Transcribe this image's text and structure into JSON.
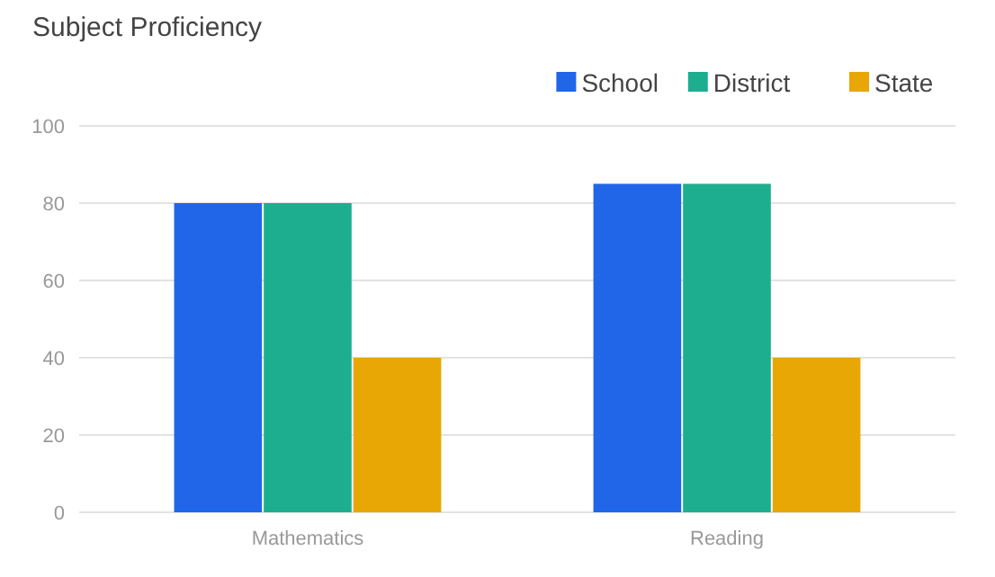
{
  "chart_data": {
    "type": "bar",
    "title": "Subject Proficiency",
    "categories": [
      "Mathematics",
      "Reading"
    ],
    "series": [
      {
        "name": "School",
        "color": "#2166e8",
        "values": [
          80,
          85
        ]
      },
      {
        "name": "District",
        "color": "#1cae8f",
        "values": [
          80,
          85
        ]
      },
      {
        "name": "State",
        "color": "#e8a705",
        "values": [
          40,
          40
        ]
      }
    ],
    "ylim": [
      0,
      100
    ],
    "yticks": [
      0,
      20,
      40,
      60,
      80,
      100
    ],
    "grid": "y",
    "legend": "top right"
  }
}
